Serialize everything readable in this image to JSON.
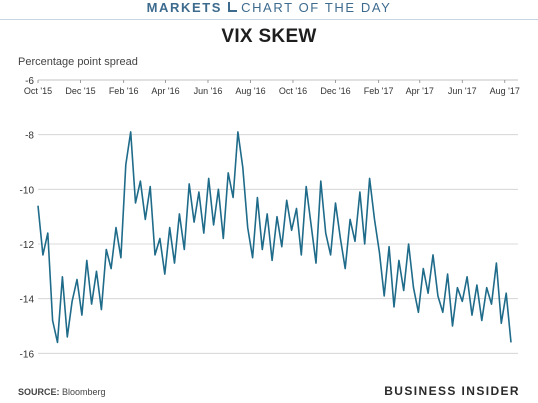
{
  "header": {
    "brand": "MARKETS",
    "section": "CHART OF THE DAY"
  },
  "footer": {
    "source_label": "SOURCE:",
    "source_value": "Bloomberg",
    "publisher": "BUSINESS INSIDER"
  },
  "colors": {
    "line": "#1f6b8a",
    "header": "#3d6b8e",
    "grid": "#cfcfcf"
  },
  "chart_data": {
    "type": "line",
    "title": "VIX SKEW",
    "ylabel": "Percentage point spread",
    "xlabel": "",
    "x_axis_position": "top",
    "grid": "horizontal",
    "ylim": [
      -16.5,
      -6
    ],
    "yticks": [
      -6,
      -8,
      -10,
      -12,
      -14,
      -16
    ],
    "xlim": [
      "2015-10-01",
      "2017-08-20"
    ],
    "xticks": [
      {
        "date": "2015-10-01",
        "label": "Oct '15"
      },
      {
        "date": "2015-12-01",
        "label": "Dec '15"
      },
      {
        "date": "2016-02-01",
        "label": "Feb '16"
      },
      {
        "date": "2016-04-01",
        "label": "Apr '16"
      },
      {
        "date": "2016-06-01",
        "label": "Jun '16"
      },
      {
        "date": "2016-08-01",
        "label": "Aug '16"
      },
      {
        "date": "2016-10-01",
        "label": "Oct '16"
      },
      {
        "date": "2016-12-01",
        "label": "Dec '16"
      },
      {
        "date": "2017-02-01",
        "label": "Feb '17"
      },
      {
        "date": "2017-04-01",
        "label": "Apr '17"
      },
      {
        "date": "2017-06-01",
        "label": "Jun '17"
      },
      {
        "date": "2017-08-01",
        "label": "Aug '17"
      }
    ],
    "series": [
      {
        "name": "",
        "x": [
          "2015-10-01",
          "2015-10-08",
          "2015-10-15",
          "2015-10-22",
          "2015-10-29",
          "2015-11-05",
          "2015-11-12",
          "2015-11-19",
          "2015-11-26",
          "2015-12-03",
          "2015-12-10",
          "2015-12-17",
          "2015-12-24",
          "2015-12-31",
          "2016-01-07",
          "2016-01-14",
          "2016-01-21",
          "2016-01-28",
          "2016-02-04",
          "2016-02-11",
          "2016-02-18",
          "2016-02-25",
          "2016-03-03",
          "2016-03-10",
          "2016-03-17",
          "2016-03-24",
          "2016-03-31",
          "2016-04-07",
          "2016-04-14",
          "2016-04-21",
          "2016-04-28",
          "2016-05-05",
          "2016-05-12",
          "2016-05-19",
          "2016-05-26",
          "2016-06-02",
          "2016-06-09",
          "2016-06-16",
          "2016-06-23",
          "2016-06-30",
          "2016-07-07",
          "2016-07-14",
          "2016-07-21",
          "2016-07-28",
          "2016-08-04",
          "2016-08-11",
          "2016-08-18",
          "2016-08-25",
          "2016-09-01",
          "2016-09-08",
          "2016-09-15",
          "2016-09-22",
          "2016-09-29",
          "2016-10-06",
          "2016-10-13",
          "2016-10-20",
          "2016-10-27",
          "2016-11-03",
          "2016-11-10",
          "2016-11-17",
          "2016-11-24",
          "2016-12-01",
          "2016-12-08",
          "2016-12-15",
          "2016-12-22",
          "2016-12-29",
          "2017-01-05",
          "2017-01-12",
          "2017-01-19",
          "2017-01-26",
          "2017-02-02",
          "2017-02-09",
          "2017-02-16",
          "2017-02-23",
          "2017-03-02",
          "2017-03-09",
          "2017-03-16",
          "2017-03-23",
          "2017-03-30",
          "2017-04-06",
          "2017-04-13",
          "2017-04-20",
          "2017-04-27",
          "2017-05-04",
          "2017-05-11",
          "2017-05-18",
          "2017-05-25",
          "2017-06-01",
          "2017-06-08",
          "2017-06-15",
          "2017-06-22",
          "2017-06-29",
          "2017-07-06",
          "2017-07-13",
          "2017-07-20",
          "2017-07-27",
          "2017-08-03",
          "2017-08-10"
        ],
        "values": [
          -10.6,
          -12.4,
          -11.6,
          -14.8,
          -15.6,
          -13.2,
          -15.4,
          -14.1,
          -13.3,
          -14.6,
          -12.6,
          -14.2,
          -13.0,
          -14.4,
          -12.2,
          -12.9,
          -11.4,
          -12.5,
          -9.1,
          -7.9,
          -10.5,
          -9.7,
          -11.1,
          -9.9,
          -12.4,
          -11.8,
          -13.1,
          -11.4,
          -12.7,
          -10.9,
          -12.2,
          -9.8,
          -11.2,
          -10.1,
          -11.6,
          -9.6,
          -11.3,
          -10.0,
          -11.8,
          -9.4,
          -10.3,
          -7.9,
          -9.2,
          -11.4,
          -12.5,
          -10.3,
          -12.2,
          -10.9,
          -12.6,
          -11.0,
          -12.1,
          -10.4,
          -11.5,
          -10.7,
          -12.4,
          -9.9,
          -11.3,
          -12.7,
          -9.7,
          -11.6,
          -12.4,
          -10.5,
          -11.8,
          -12.9,
          -11.1,
          -11.9,
          -10.1,
          -12.0,
          -9.6,
          -11.1,
          -12.3,
          -13.9,
          -12.1,
          -14.3,
          -12.6,
          -13.7,
          -12.0,
          -13.6,
          -14.5,
          -12.9,
          -13.8,
          -12.4,
          -13.9,
          -14.5,
          -13.1,
          -15.0,
          -13.6,
          -14.1,
          -13.2,
          -14.6,
          -13.5,
          -14.8,
          -13.6,
          -14.2,
          -12.7,
          -14.9,
          -13.8,
          -15.6
        ]
      }
    ]
  }
}
